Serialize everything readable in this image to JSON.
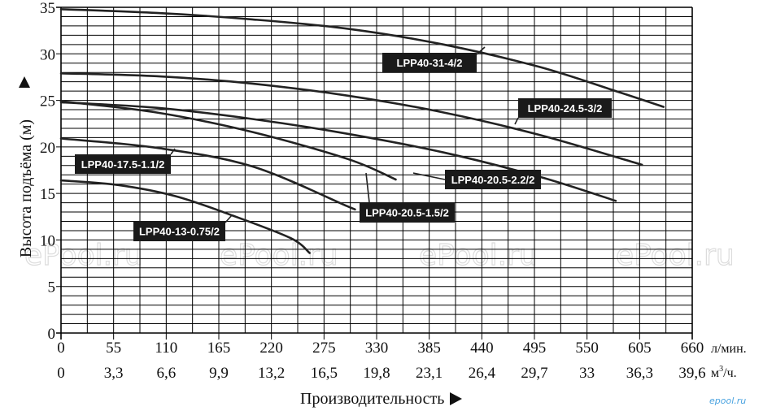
{
  "colors": {
    "curve": "#222222",
    "grid": "#000000",
    "label_bg": "#1a1a1a",
    "label_text": "#ffffff",
    "logo": "#4aa3e0",
    "watermark": "#dcdcdc"
  },
  "watermarks": [
    "ePool.ru",
    "ePool.ru",
    "ePool.ru",
    "ePool.ru"
  ],
  "logo_text": "epool.ru",
  "chart_data": {
    "type": "line",
    "title": "",
    "ylabel": "Высота подъёма (м)",
    "xlabel": "Производительность",
    "x_unit_primary": "л/мин.",
    "x_unit_secondary_base": "м",
    "x_unit_secondary_sup": "3",
    "x_unit_secondary_tail": "/ч.",
    "xlim": [
      0,
      660
    ],
    "ylim": [
      0,
      35
    ],
    "grid": true,
    "x_ticks": [
      0,
      55,
      110,
      165,
      220,
      275,
      330,
      385,
      440,
      495,
      550,
      605,
      660
    ],
    "x_ticks_secondary": [
      "0",
      "3,3",
      "6,6",
      "9,9",
      "13,2",
      "16,5",
      "19,8",
      "23,1",
      "26,4",
      "29,7",
      "33",
      "36,3",
      "39,6"
    ],
    "y_ticks": [
      0,
      5,
      10,
      15,
      20,
      25,
      30,
      35
    ],
    "series": [
      {
        "name": "LPP40-31-4/2",
        "x": [
          0,
          100,
          200,
          300,
          400,
          500,
          580,
          630
        ],
        "y": [
          34.8,
          34.4,
          33.7,
          32.7,
          31.0,
          28.6,
          26.0,
          24.3
        ]
      },
      {
        "name": "LPP40-24.5-3/2",
        "x": [
          0,
          100,
          200,
          300,
          400,
          500,
          600,
          600
        ],
        "y": [
          27.9,
          27.6,
          26.8,
          25.5,
          23.7,
          21.3,
          18.3,
          18.3
        ]
      },
      {
        "name": "LPP40-20.5-2.2/2",
        "x": [
          0,
          100,
          200,
          300,
          400,
          500,
          580
        ],
        "y": [
          24.8,
          24.2,
          23.0,
          21.4,
          19.4,
          16.8,
          14.2
        ]
      },
      {
        "name": "LPP40-20.5-1.5/2",
        "x": [
          0,
          100,
          200,
          300,
          350
        ],
        "y": [
          24.9,
          23.7,
          21.6,
          18.7,
          16.5
        ]
      },
      {
        "name": "LPP40-17.5-1.1/2",
        "x": [
          0,
          100,
          200,
          300,
          300
        ],
        "y": [
          20.9,
          19.9,
          17.9,
          13.6,
          13.6
        ]
      },
      {
        "name": "LPP40-13-0.75/2",
        "x": [
          0,
          60,
          120,
          180,
          240,
          260
        ],
        "y": [
          16.4,
          15.9,
          14.7,
          12.6,
          10.2,
          8.6
        ]
      }
    ],
    "labels": [
      {
        "series": 0,
        "text": "LPP40-31-4/2"
      },
      {
        "series": 1,
        "text": "LPP40-24.5-3/2"
      },
      {
        "series": 2,
        "text": "LPP40-20.5-2.2/2"
      },
      {
        "series": 3,
        "text": "LPP40-20.5-1.5/2"
      },
      {
        "series": 4,
        "text": "LPP40-17.5-1.1/2"
      },
      {
        "series": 5,
        "text": "LPP40-13-0.75/2"
      }
    ]
  }
}
